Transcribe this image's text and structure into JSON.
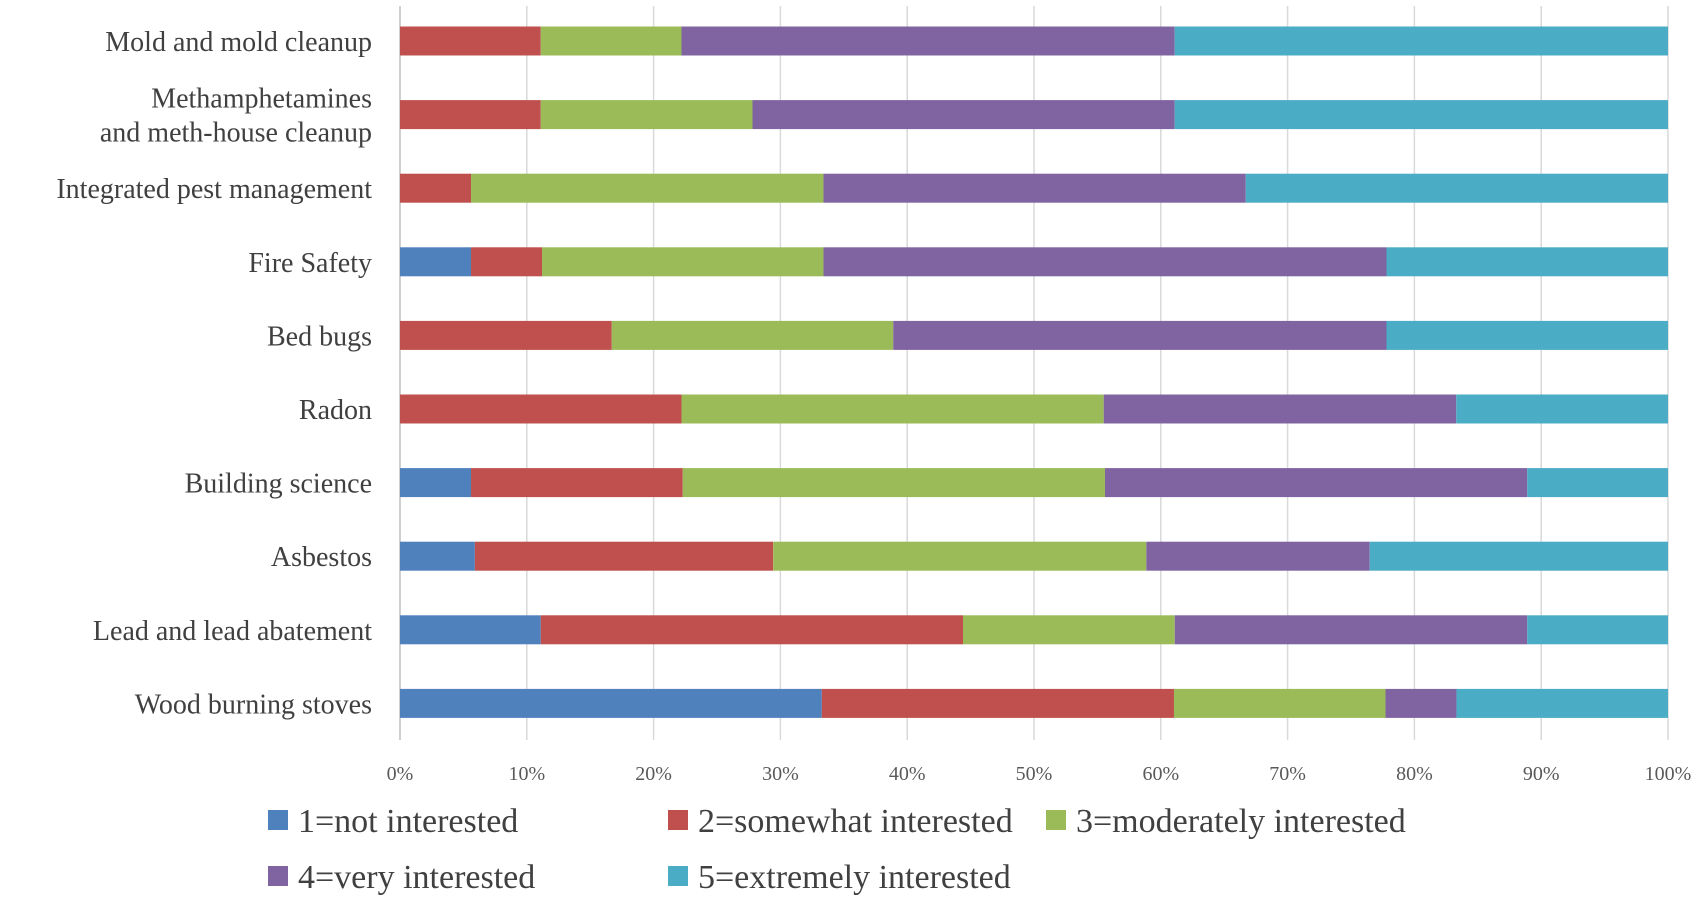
{
  "chart_data": {
    "type": "bar",
    "orientation": "horizontal",
    "stacked": "percent",
    "categories": [
      "Mold and mold cleanup",
      "Methamphetamines\nand meth-house cleanup",
      "Integrated pest management",
      "Fire Safety",
      "Bed bugs",
      "Radon",
      "Building science",
      "Asbestos",
      "Lead and lead abatement",
      "Wood burning stoves"
    ],
    "series": [
      {
        "name": "1=not interested",
        "color": "#4f81bd",
        "values": [
          0,
          0,
          0,
          5.6,
          0,
          0,
          5.6,
          5.9,
          11.1,
          33.3
        ]
      },
      {
        "name": "2=somewhat interested",
        "color": "#c0504d",
        "values": [
          11.1,
          11.1,
          5.6,
          5.6,
          16.7,
          22.2,
          16.7,
          23.5,
          33.3,
          27.8
        ]
      },
      {
        "name": "3=moderately interested",
        "color": "#9bbb59",
        "values": [
          11.1,
          16.7,
          27.8,
          22.2,
          22.2,
          33.3,
          33.3,
          29.4,
          16.7,
          16.7
        ]
      },
      {
        "name": "4=very interested",
        "color": "#8064a2",
        "values": [
          38.9,
          33.3,
          33.3,
          44.4,
          38.9,
          27.8,
          33.3,
          17.6,
          27.8,
          5.6
        ]
      },
      {
        "name": "5=extremely interested",
        "color": "#4bacc6",
        "values": [
          38.9,
          38.9,
          33.3,
          22.2,
          22.2,
          16.7,
          11.1,
          23.5,
          11.1,
          16.7
        ]
      }
    ],
    "xlim": [
      0,
      100
    ],
    "xticks": [
      "0%",
      "10%",
      "20%",
      "30%",
      "40%",
      "50%",
      "60%",
      "70%",
      "80%",
      "90%",
      "100%"
    ],
    "title": "",
    "xlabel": "",
    "ylabel": "",
    "grid": "vertical",
    "legend": "bottom"
  }
}
